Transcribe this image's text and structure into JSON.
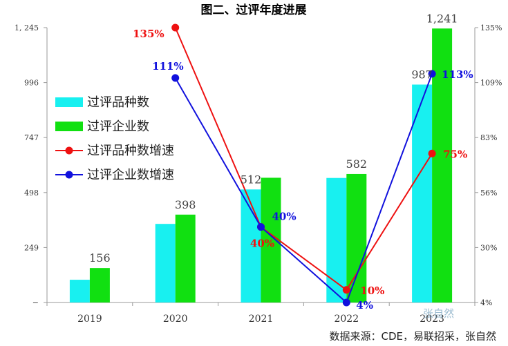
{
  "chart_data": {
    "type": "bar",
    "title": "图二、过评年度进展",
    "categories": [
      "2019",
      "2020",
      "2021",
      "2022",
      "2023"
    ],
    "series": [
      {
        "name": "过评品种数",
        "kind": "bar",
        "axis": "left",
        "color": "#18f0f0",
        "values": [
          103,
          356,
          512,
          564,
          987
        ],
        "labels": [
          "",
          "",
          "512",
          "",
          "987"
        ]
      },
      {
        "name": "过评企业数",
        "kind": "bar",
        "axis": "left",
        "color": "#11e011",
        "values": [
          156,
          398,
          565,
          582,
          1241
        ],
        "labels": [
          "156",
          "398",
          "",
          "582",
          "1,241"
        ]
      },
      {
        "name": "过评品种数增速",
        "kind": "line",
        "axis": "right",
        "color": "#ee1111",
        "values": [
          null,
          135,
          40,
          10,
          75
        ],
        "labels": [
          "",
          "135%",
          "40%",
          "10%",
          "75%"
        ]
      },
      {
        "name": "过评企业数增速",
        "kind": "line",
        "axis": "right",
        "color": "#1111dd",
        "values": [
          null,
          111,
          40,
          4,
          113
        ],
        "labels": [
          "",
          "111%",
          "40%",
          "4%",
          "113%"
        ]
      }
    ],
    "y_left": {
      "min": 0,
      "max": 1245,
      "ticks": [
        "−",
        "249",
        "498",
        "747",
        "996",
        "1, 245"
      ]
    },
    "y_right": {
      "min": 4,
      "max": 135,
      "ticks": [
        "4%",
        "30%",
        "56%",
        "83%",
        "109%",
        "135%"
      ]
    },
    "legend_position": "left",
    "grid": false
  },
  "source": "数据来源：CDE，易联招采，张自然",
  "watermark": "张自然"
}
